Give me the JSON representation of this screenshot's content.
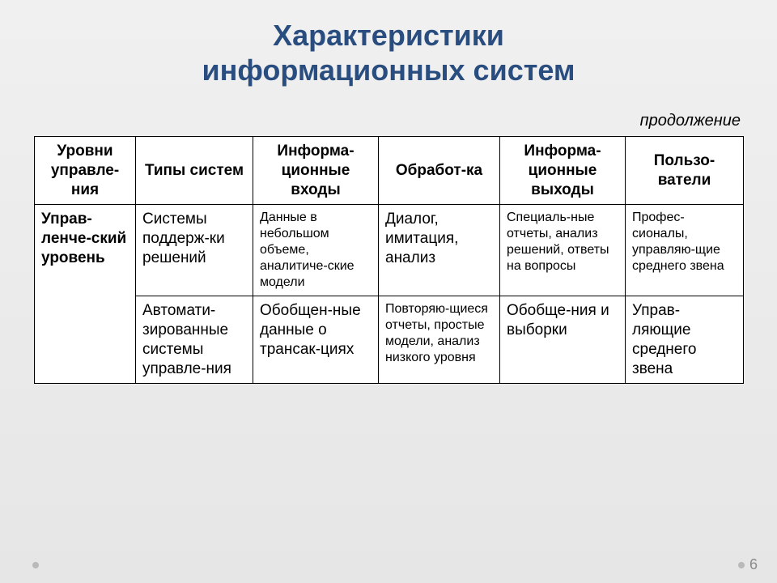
{
  "title_line1": "Характеристики",
  "title_line2": "информационных систем",
  "continuation": "продолжение",
  "page_number": "6",
  "columns": [
    "Уровни управле-ния",
    "Типы систем",
    "Информа-ционные входы",
    "Обработ-ка",
    "Информа-ционные выходы",
    "Пользо-ватели"
  ],
  "rowheader": "Управ-ленче-ский уровень",
  "row1": {
    "c1": "Системы поддерж-ки решений",
    "c2": "Данные в небольшом объеме, аналитиче-ские модели",
    "c3": "Диалог, имитация, анализ",
    "c4": "Специаль-ные отчеты, анализ решений, ответы на вопросы",
    "c5": "Профес-сионалы, управляю-щие среднего звена"
  },
  "row2": {
    "c1": "Автомати-зированные системы управле-ния",
    "c2": "Обобщен-ные данные о трансак-циях",
    "c3": "Повторяю-щиеся отчеты, простые модели, анализ низкого уровня",
    "c4": "Обобще-ния и выборки",
    "c5": "Управ-ляющие среднего звена"
  },
  "colors": {
    "title": "#2a4d7f",
    "border": "#000000",
    "bg_top": "#f0f0f0",
    "bg_bottom": "#e6e6e6",
    "pagenum": "#8a8a8a"
  },
  "font_sizes": {
    "title": 36,
    "continuation": 20,
    "header": 19,
    "cell_large": 19,
    "cell_small": 16
  }
}
